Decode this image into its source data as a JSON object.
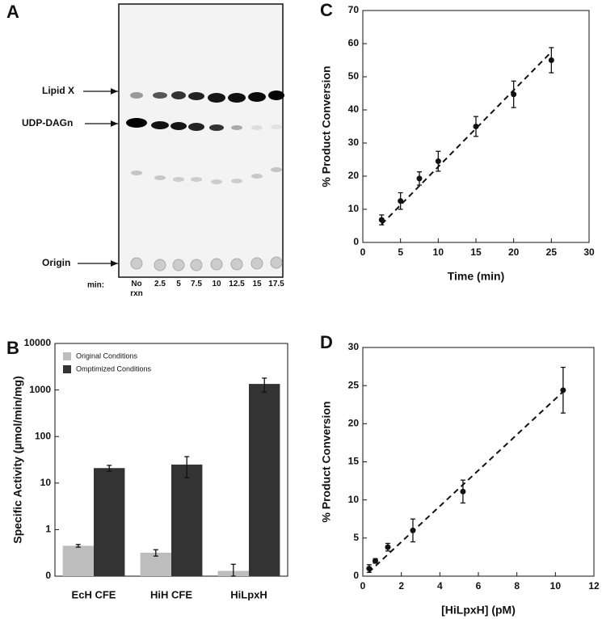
{
  "gel": {
    "panel": "A",
    "bands": [
      "Lipid X",
      "UDP-DAGn",
      "Origin"
    ],
    "lane_axis_label": "min:",
    "lanes": [
      "No rxn",
      "2.5",
      "5",
      "7.5",
      "10",
      "12.5",
      "15",
      "17.5"
    ]
  },
  "chart_data": [
    {
      "type": "bar",
      "panel": "B",
      "ylabel": "Specific Activity (µmol/min/mg)",
      "log_y": true,
      "categories": [
        "EcH CFE",
        "HiH CFE",
        "HiLpxH"
      ],
      "series": [
        {
          "name": "Original Conditions",
          "color": "#bdbdbd",
          "values": [
            0.45,
            0.32,
            0.13
          ],
          "errors": [
            0.03,
            0.05,
            0.05
          ]
        },
        {
          "name": "Omptimized Conditions",
          "color": "#333333",
          "values": [
            21,
            25,
            1350
          ],
          "errors": [
            3,
            12,
            450
          ]
        }
      ],
      "ylim": [
        0.1,
        10000
      ],
      "yticks": [
        {
          "value": 0.1,
          "label": "0"
        },
        1,
        10,
        100,
        1000,
        10000
      ],
      "legend": "upper left"
    },
    {
      "type": "scatter",
      "panel": "C",
      "xlabel": "Time (min)",
      "ylabel": "% Product Conversion",
      "series": [
        {
          "color": "#111111",
          "x": [
            2.5,
            5,
            7.5,
            10,
            15,
            20,
            25
          ],
          "values": [
            6.8,
            12.5,
            19.3,
            24.5,
            35,
            44.7,
            55
          ],
          "errors": [
            1.5,
            2.5,
            2,
            3,
            3,
            4,
            3.8
          ]
        }
      ],
      "trendline": {
        "x": [
          2.5,
          25
        ],
        "y": [
          5.5,
          57.5
        ]
      },
      "xlim": [
        0,
        30
      ],
      "xticks": [
        0,
        5,
        10,
        15,
        20,
        25,
        30
      ],
      "ylim": [
        0,
        70
      ],
      "yticks": [
        0,
        10,
        20,
        30,
        40,
        50,
        60,
        70
      ]
    },
    {
      "type": "scatter",
      "panel": "D",
      "xlabel": "[HiLpxH] (pM)",
      "ylabel": "% Product Conversion",
      "series": [
        {
          "color": "#111111",
          "x": [
            0.33,
            0.65,
            1.3,
            2.6,
            5.2,
            10.4
          ],
          "values": [
            1,
            2,
            3.8,
            6,
            11.1,
            24.4
          ],
          "errors": [
            0.5,
            0.3,
            0.5,
            1.5,
            1.5,
            3
          ]
        }
      ],
      "trendline": {
        "x": [
          0.3,
          10.4
        ],
        "y": [
          0.5,
          24.2
        ]
      },
      "xlim": [
        0,
        12
      ],
      "xticks": [
        0,
        2,
        4,
        6,
        8,
        10,
        12
      ],
      "ylim": [
        0,
        30
      ],
      "yticks": [
        0,
        5,
        10,
        15,
        20,
        25,
        30
      ]
    }
  ]
}
